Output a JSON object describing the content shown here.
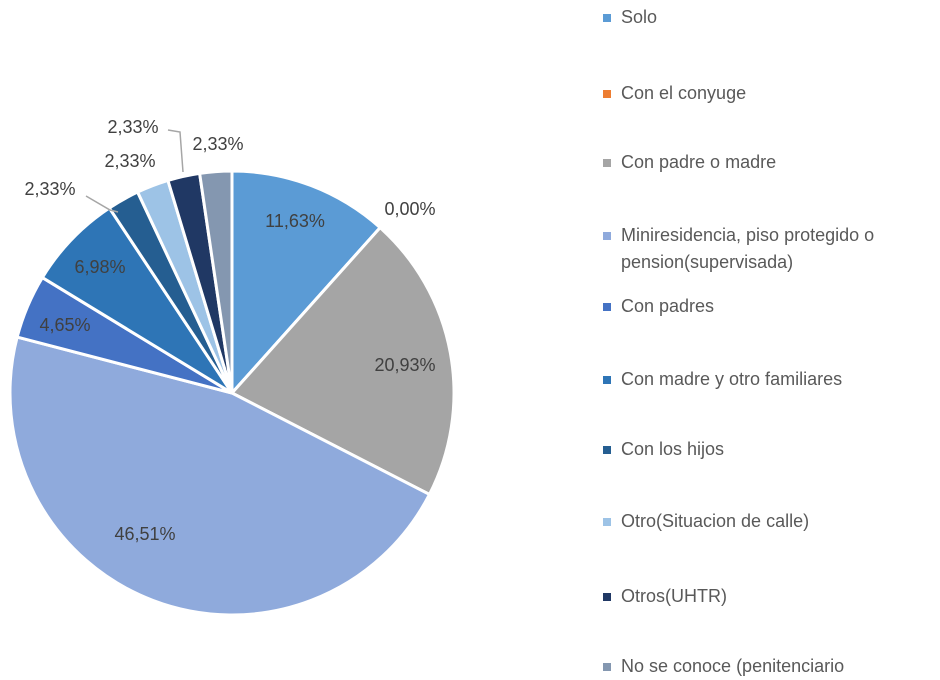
{
  "chart_data": {
    "type": "pie",
    "categories": [
      "Solo",
      "Con el conyuge",
      "Con padre o madre",
      "Miniresidencia, piso protegido o pension(supervisada)",
      "Con padres",
      "Con madre y otro familiares",
      "Con los hijos",
      "Otro(Situacion de calle)",
      "Otros(UHTR)",
      "No se conoce (penitenciario"
    ],
    "values": [
      11.63,
      0,
      20.93,
      46.51,
      4.65,
      6.98,
      2.33,
      2.33,
      2.33,
      2.33
    ],
    "value_labels": [
      "11,63%",
      "0,00%",
      "20,93%",
      "46,51%",
      "4,65%",
      "6,98%",
      "2,33%",
      "2,33%",
      "2,33%",
      "2,33%"
    ],
    "colors": [
      "#5b9bd5",
      "#ed7d31",
      "#a5a5a5",
      "#8faadc",
      "#4472c4",
      "#2e75b6",
      "#255e91",
      "#9dc3e6",
      "#203864",
      "#8497b0"
    ]
  }
}
